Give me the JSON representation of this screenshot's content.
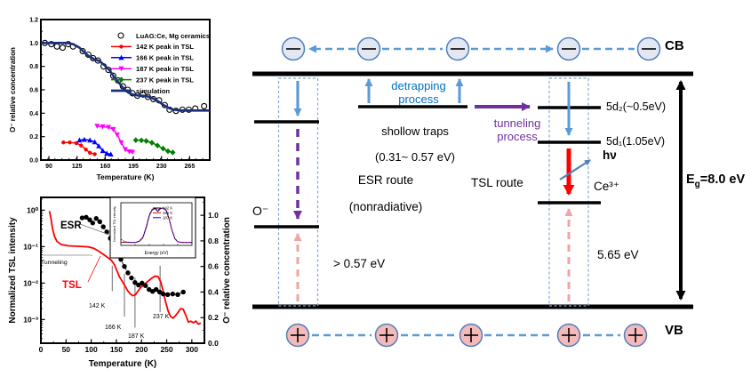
{
  "diagram": {
    "cb_label": "CB",
    "vb_label": "VB",
    "detrapping": "detrapping process",
    "shallow_line1": "shollow traps",
    "shallow_line2": "(0.31~ 0.57 eV)",
    "tunneling": "tunneling process",
    "esr_route_line1": "ESR route",
    "esr_route_line2": "(nonradiative)",
    "tsl_route": "TSL route",
    "o_minus": "O⁻",
    "gt_energy": "> 0.57 eV",
    "energy_565": "5.65 eV",
    "level_5d2": "5d₂(~0.5eV)",
    "level_5d1": "5d₁(1.05eV)",
    "hnu": "hν",
    "ce3": "Ce³⁺",
    "eg_e": "E",
    "eg_sub": "g",
    "eg_rest": "=8.0 eV",
    "colors": {
      "electron_fill": "#e3e7f2",
      "hole_fill": "#f6b9b9",
      "blue": "#5b9bd5",
      "purple": "#7030a0",
      "red": "#ff0000",
      "pink": "#f2a3a3",
      "box_dash": "#7fa8d4",
      "text_blue": "#0070c0"
    }
  },
  "chart_data": [
    {
      "type": "line",
      "title": "",
      "xlabel": "Temperature (K)",
      "ylabel": "O⁻ relative concentration",
      "xlim": [
        80,
        290
      ],
      "ylim": [
        0,
        1.2
      ],
      "xticks": [
        90,
        125,
        160,
        195,
        230,
        265
      ],
      "yticks": [
        0.0,
        0.2,
        0.4,
        0.6,
        0.8,
        1.0,
        1.2
      ],
      "legend_position": "top-right",
      "series": [
        {
          "name": "LuAG:Ce, Mg ceramics",
          "marker": "circle-open",
          "color": "#000000",
          "line": false,
          "points": [
            [
              85,
              1.0
            ],
            [
              93,
              0.99
            ],
            [
              100,
              0.97
            ],
            [
              107,
              0.96
            ],
            [
              114,
              0.99
            ],
            [
              120,
              0.97
            ],
            [
              132,
              0.93
            ],
            [
              139,
              0.9
            ],
            [
              145,
              0.87
            ],
            [
              151,
              0.85
            ],
            [
              158,
              0.8
            ],
            [
              164,
              0.77
            ],
            [
              170,
              0.72
            ],
            [
              176,
              0.68
            ],
            [
              182,
              0.63
            ],
            [
              188,
              0.6
            ],
            [
              194,
              0.57
            ],
            [
              200,
              0.55
            ],
            [
              207,
              0.56
            ],
            [
              213,
              0.54
            ],
            [
              220,
              0.52
            ],
            [
              227,
              0.51
            ],
            [
              234,
              0.47
            ],
            [
              240,
              0.43
            ],
            [
              248,
              0.42
            ],
            [
              256,
              0.43
            ],
            [
              264,
              0.43
            ],
            [
              272,
              0.44
            ],
            [
              283,
              0.46
            ]
          ]
        },
        {
          "name": "142 K peak in TSL",
          "marker": "circle",
          "color": "#ff0000",
          "points": [
            [
              108,
              0.15
            ],
            [
              116,
              0.15
            ],
            [
              124,
              0.145
            ],
            [
              130,
              0.125
            ],
            [
              136,
              0.09
            ],
            [
              141,
              0.062
            ],
            [
              147,
              0.05
            ]
          ]
        },
        {
          "name": "166 K peak in TSL",
          "marker": "triangle-up",
          "color": "#0000ff",
          "points": [
            [
              128,
              0.17
            ],
            [
              134,
              0.175
            ],
            [
              141,
              0.17
            ],
            [
              147,
              0.155
            ],
            [
              152,
              0.12
            ],
            [
              157,
              0.08
            ],
            [
              162,
              0.057
            ],
            [
              167,
              0.05
            ]
          ]
        },
        {
          "name": "187 K peak in TSL",
          "marker": "triangle-down",
          "color": "#ff00ff",
          "points": [
            [
              150,
              0.29
            ],
            [
              157,
              0.285
            ],
            [
              164,
              0.28
            ],
            [
              170,
              0.262
            ],
            [
              175,
              0.215
            ],
            [
              180,
              0.148
            ],
            [
              185,
              0.09
            ],
            [
              190,
              0.072
            ],
            [
              194,
              0.068
            ]
          ]
        },
        {
          "name": "237 K peak in TSL",
          "marker": "diamond",
          "color": "#008000",
          "points": [
            [
              198,
              0.17
            ],
            [
              205,
              0.168
            ],
            [
              211,
              0.163
            ],
            [
              218,
              0.148
            ],
            [
              225,
              0.124
            ],
            [
              232,
              0.098
            ],
            [
              238,
              0.076
            ],
            [
              244,
              0.065
            ]
          ]
        },
        {
          "name": "simulation",
          "marker": "none",
          "color": "#1c2f7c",
          "width": 2.6,
          "points": [
            [
              80,
              1.0
            ],
            [
              112,
              1.0
            ],
            [
              120,
              0.99
            ],
            [
              128,
              0.96
            ],
            [
              134,
              0.92
            ],
            [
              140,
              0.885
            ],
            [
              147,
              0.86
            ],
            [
              153,
              0.845
            ],
            [
              159,
              0.81
            ],
            [
              165,
              0.77
            ],
            [
              171,
              0.71
            ],
            [
              177,
              0.66
            ],
            [
              183,
              0.61
            ],
            [
              189,
              0.575
            ],
            [
              195,
              0.558
            ],
            [
              202,
              0.55
            ],
            [
              209,
              0.548
            ],
            [
              215,
              0.54
            ],
            [
              221,
              0.52
            ],
            [
              227,
              0.497
            ],
            [
              233,
              0.468
            ],
            [
              239,
              0.445
            ],
            [
              245,
              0.43
            ],
            [
              251,
              0.425
            ],
            [
              260,
              0.423
            ],
            [
              290,
              0.423
            ]
          ]
        }
      ]
    },
    {
      "type": "line",
      "xlabel": "Temperature (K)",
      "ylabel_left": "Normalized TSL intensity",
      "ylabel_right": "O⁻ relative concentration",
      "y_left_scale": "log",
      "y_left_ticks": [
        "10⁰",
        "10⁻¹",
        "10⁻²",
        "10⁻³"
      ],
      "y_left_decades": [
        1,
        0.1,
        0.01,
        0.001
      ],
      "y_right_ticks": [
        0.0,
        0.2,
        0.4,
        0.6,
        0.8,
        1.0
      ],
      "xlim": [
        0,
        325
      ],
      "xticks": [
        0,
        50,
        100,
        150,
        200,
        250,
        300
      ],
      "series": [
        {
          "name": "TSL",
          "axis": "left",
          "color": "#ff0000",
          "marker": "none",
          "width": 1.8,
          "points": [
            [
              17,
              0.95
            ],
            [
              20,
              0.6
            ],
            [
              23,
              0.32
            ],
            [
              27,
              0.19
            ],
            [
              32,
              0.14
            ],
            [
              40,
              0.115
            ],
            [
              55,
              0.105
            ],
            [
              75,
              0.102
            ],
            [
              95,
              0.098
            ],
            [
              105,
              0.09
            ],
            [
              115,
              0.075
            ],
            [
              125,
              0.06
            ],
            [
              133,
              0.05
            ],
            [
              140,
              0.042
            ],
            [
              146,
              0.032
            ],
            [
              151,
              0.022
            ],
            [
              156,
              0.015
            ],
            [
              162,
              0.011
            ],
            [
              168,
              0.008
            ],
            [
              173,
              0.006
            ],
            [
              178,
              0.005
            ],
            [
              183,
              0.0045
            ],
            [
              188,
              0.0048
            ],
            [
              193,
              0.006
            ],
            [
              198,
              0.0075
            ],
            [
              205,
              0.009
            ],
            [
              212,
              0.011
            ],
            [
              220,
              0.0135
            ],
            [
              227,
              0.0155
            ],
            [
              233,
              0.015
            ],
            [
              238,
              0.011
            ],
            [
              243,
              0.006
            ],
            [
              248,
              0.003
            ],
            [
              253,
              0.0017
            ],
            [
              258,
              0.0012
            ],
            [
              263,
              0.0011
            ],
            [
              268,
              0.0013
            ],
            [
              273,
              0.0016
            ],
            [
              278,
              0.002
            ],
            [
              283,
              0.0019
            ],
            [
              288,
              0.0013
            ],
            [
              293,
              0.00085
            ],
            [
              298,
              0.0009
            ],
            [
              303,
              0.00082
            ],
            [
              308,
              0.0009
            ],
            [
              313,
              0.00075
            ],
            [
              318,
              0.0008
            ]
          ]
        },
        {
          "name": "ESR",
          "axis": "right",
          "color": "#000000",
          "marker": "dot",
          "dashed": true,
          "width": 0.9,
          "points": [
            [
              82,
              0.98
            ],
            [
              90,
              0.985
            ],
            [
              97,
              0.965
            ],
            [
              103,
              0.94
            ],
            [
              110,
              0.975
            ],
            [
              117,
              0.95
            ],
            [
              124,
              0.91
            ],
            [
              131,
              0.87
            ],
            [
              138,
              0.82
            ],
            [
              145,
              0.77
            ],
            [
              152,
              0.71
            ],
            [
              159,
              0.655
            ],
            [
              166,
              0.6
            ],
            [
              173,
              0.55
            ],
            [
              180,
              0.51
            ],
            [
              187,
              0.475
            ],
            [
              194,
              0.455
            ],
            [
              201,
              0.47
            ],
            [
              208,
              0.45
            ],
            [
              215,
              0.42
            ],
            [
              222,
              0.405
            ],
            [
              229,
              0.42
            ],
            [
              236,
              0.4
            ],
            [
              243,
              0.385
            ],
            [
              252,
              0.38
            ],
            [
              262,
              0.385
            ],
            [
              272,
              0.38
            ],
            [
              283,
              0.4
            ]
          ]
        }
      ],
      "annotations": {
        "esr_label": "ESR",
        "tsl_label": "TSL",
        "tunneling_label": "Tunneling",
        "marker_lines": [
          {
            "t": 142,
            "label": "142 K",
            "from": 0.03,
            "to": 0.006
          },
          {
            "t": 166,
            "label": "166 K",
            "from": 0.018,
            "to": 0.0012
          },
          {
            "t": 187,
            "label": "187 K",
            "from": 0.014,
            "to": 0.0006
          },
          {
            "t": 237,
            "label": "237 K",
            "from": 0.03,
            "to": 0.0016
          }
        ]
      }
    },
    {
      "type": "line",
      "role": "inset-glow-spectrum",
      "xlabel": "Energy (eV)",
      "ylabel": "Normalized TSL intensity",
      "legend": [
        "142 K",
        "166 K",
        "187 K"
      ],
      "series": [
        {
          "name": "142 K",
          "color": "#000000",
          "points": [
            [
              0,
              0.03
            ],
            [
              0.06,
              0.04
            ],
            [
              0.12,
              0.03
            ],
            [
              0.2,
              0.03
            ],
            [
              0.26,
              0.06
            ],
            [
              0.31,
              0.16
            ],
            [
              0.36,
              0.45
            ],
            [
              0.4,
              0.75
            ],
            [
              0.44,
              0.9
            ],
            [
              0.48,
              0.94
            ],
            [
              0.52,
              0.86
            ],
            [
              0.56,
              0.94
            ],
            [
              0.6,
              0.95
            ],
            [
              0.64,
              0.88
            ],
            [
              0.68,
              0.65
            ],
            [
              0.72,
              0.35
            ],
            [
              0.76,
              0.13
            ],
            [
              0.8,
              0.05
            ],
            [
              0.86,
              0.03
            ],
            [
              1,
              0.03
            ]
          ]
        },
        {
          "name": "166 K",
          "color": "#ff0000",
          "points": [
            [
              0,
              0.03
            ],
            [
              0.06,
              0.035
            ],
            [
              0.12,
              0.03
            ],
            [
              0.2,
              0.035
            ],
            [
              0.26,
              0.07
            ],
            [
              0.31,
              0.18
            ],
            [
              0.36,
              0.48
            ],
            [
              0.4,
              0.78
            ],
            [
              0.44,
              0.92
            ],
            [
              0.48,
              0.95
            ],
            [
              0.52,
              0.9
            ],
            [
              0.56,
              0.95
            ],
            [
              0.6,
              0.96
            ],
            [
              0.64,
              0.89
            ],
            [
              0.68,
              0.66
            ],
            [
              0.72,
              0.36
            ],
            [
              0.76,
              0.14
            ],
            [
              0.8,
              0.05
            ],
            [
              0.86,
              0.03
            ],
            [
              1,
              0.03
            ]
          ]
        },
        {
          "name": "187 K",
          "color": "#0000ff",
          "points": [
            [
              0,
              0.12
            ],
            [
              0.04,
              0.07
            ],
            [
              0.09,
              0.04
            ],
            [
              0.15,
              0.03
            ],
            [
              0.2,
              0.03
            ],
            [
              0.26,
              0.06
            ],
            [
              0.31,
              0.17
            ],
            [
              0.36,
              0.46
            ],
            [
              0.4,
              0.76
            ],
            [
              0.44,
              0.91
            ],
            [
              0.48,
              0.94
            ],
            [
              0.52,
              0.88
            ],
            [
              0.56,
              0.94
            ],
            [
              0.6,
              0.95
            ],
            [
              0.64,
              0.88
            ],
            [
              0.68,
              0.65
            ],
            [
              0.72,
              0.35
            ],
            [
              0.76,
              0.13
            ],
            [
              0.8,
              0.05
            ],
            [
              0.86,
              0.03
            ],
            [
              1,
              0.03
            ]
          ]
        }
      ]
    }
  ]
}
